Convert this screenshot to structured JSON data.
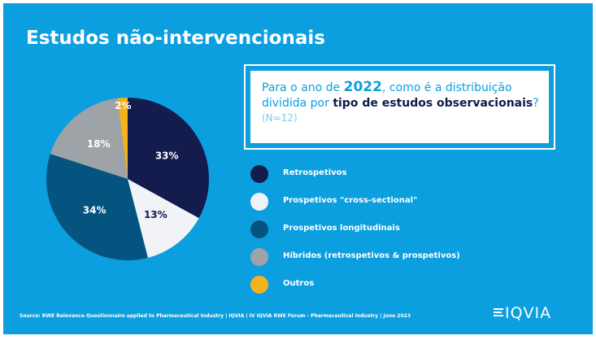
{
  "slide": {
    "title": "Estudos não-intervencionais",
    "background_color": "#0b9fe0"
  },
  "question": {
    "line1_before": "Para o ano de ",
    "year": "2022",
    "line1_after": ", como é a distribuição",
    "line2_before": "dividida por ",
    "line2_bold": "tipo de estudos observacionais",
    "line2_after": "?",
    "n": "(N=12)"
  },
  "chart_data": {
    "type": "pie",
    "categories": [
      "Retrospetivos",
      "Prospetivos \"cross-sectional\"",
      "Prospetivos longitudinais",
      "Híbridos (retrospetivos & prospetivos)",
      "Outros"
    ],
    "values": [
      33,
      13,
      34,
      18,
      2
    ],
    "value_labels": [
      "33%",
      "13%",
      "34%",
      "18%",
      "2%"
    ],
    "colors": [
      "#141b4d",
      "#f2f3f7",
      "#05547f",
      "#9ea3a8",
      "#f5b21d"
    ],
    "label_colors": [
      "#ffffff",
      "#0f1b4d",
      "#ffffff",
      "#ffffff",
      "#ffffff"
    ],
    "legend_position": "right"
  },
  "footer": {
    "source": "Source: RWE Relevance Questionnaire applied to Pharmaceutical Industry   |   IQVIA | IV IQVIA RWE Forum - Pharmaceutical Industry | June 2023"
  },
  "logo": {
    "text": "IQVIA"
  }
}
